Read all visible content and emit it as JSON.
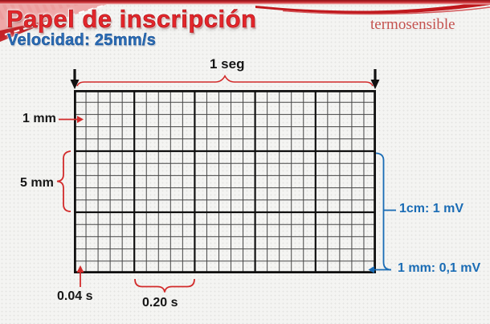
{
  "slide": {
    "title": "Papel de inscripción",
    "subtitle": "Velocidad: 25mm/s",
    "corner_note": "termosensible"
  },
  "grid": {
    "minor_cols": 25,
    "minor_rows": 15,
    "major_every": 5
  },
  "annotations": {
    "time_total": "1 seg",
    "small_square_side": "1 mm",
    "big_square_side": "5 mm",
    "voltage_big": "1cm: 1 mV",
    "voltage_small": "1 mm: 0,1 mV",
    "time_small_square": "0.04 s",
    "time_big_square": "0.20 s"
  },
  "colors": {
    "title_red": "#e3262b",
    "subtitle_blue": "#2a6cb8",
    "corner_note_red": "#c4524e",
    "annotation_red": "#d22b2b",
    "annotation_blue": "#1a6cb5",
    "ribbon_red": "#c0181d",
    "grid_line_minor": "#474747",
    "grid_line_major": "#101010"
  }
}
